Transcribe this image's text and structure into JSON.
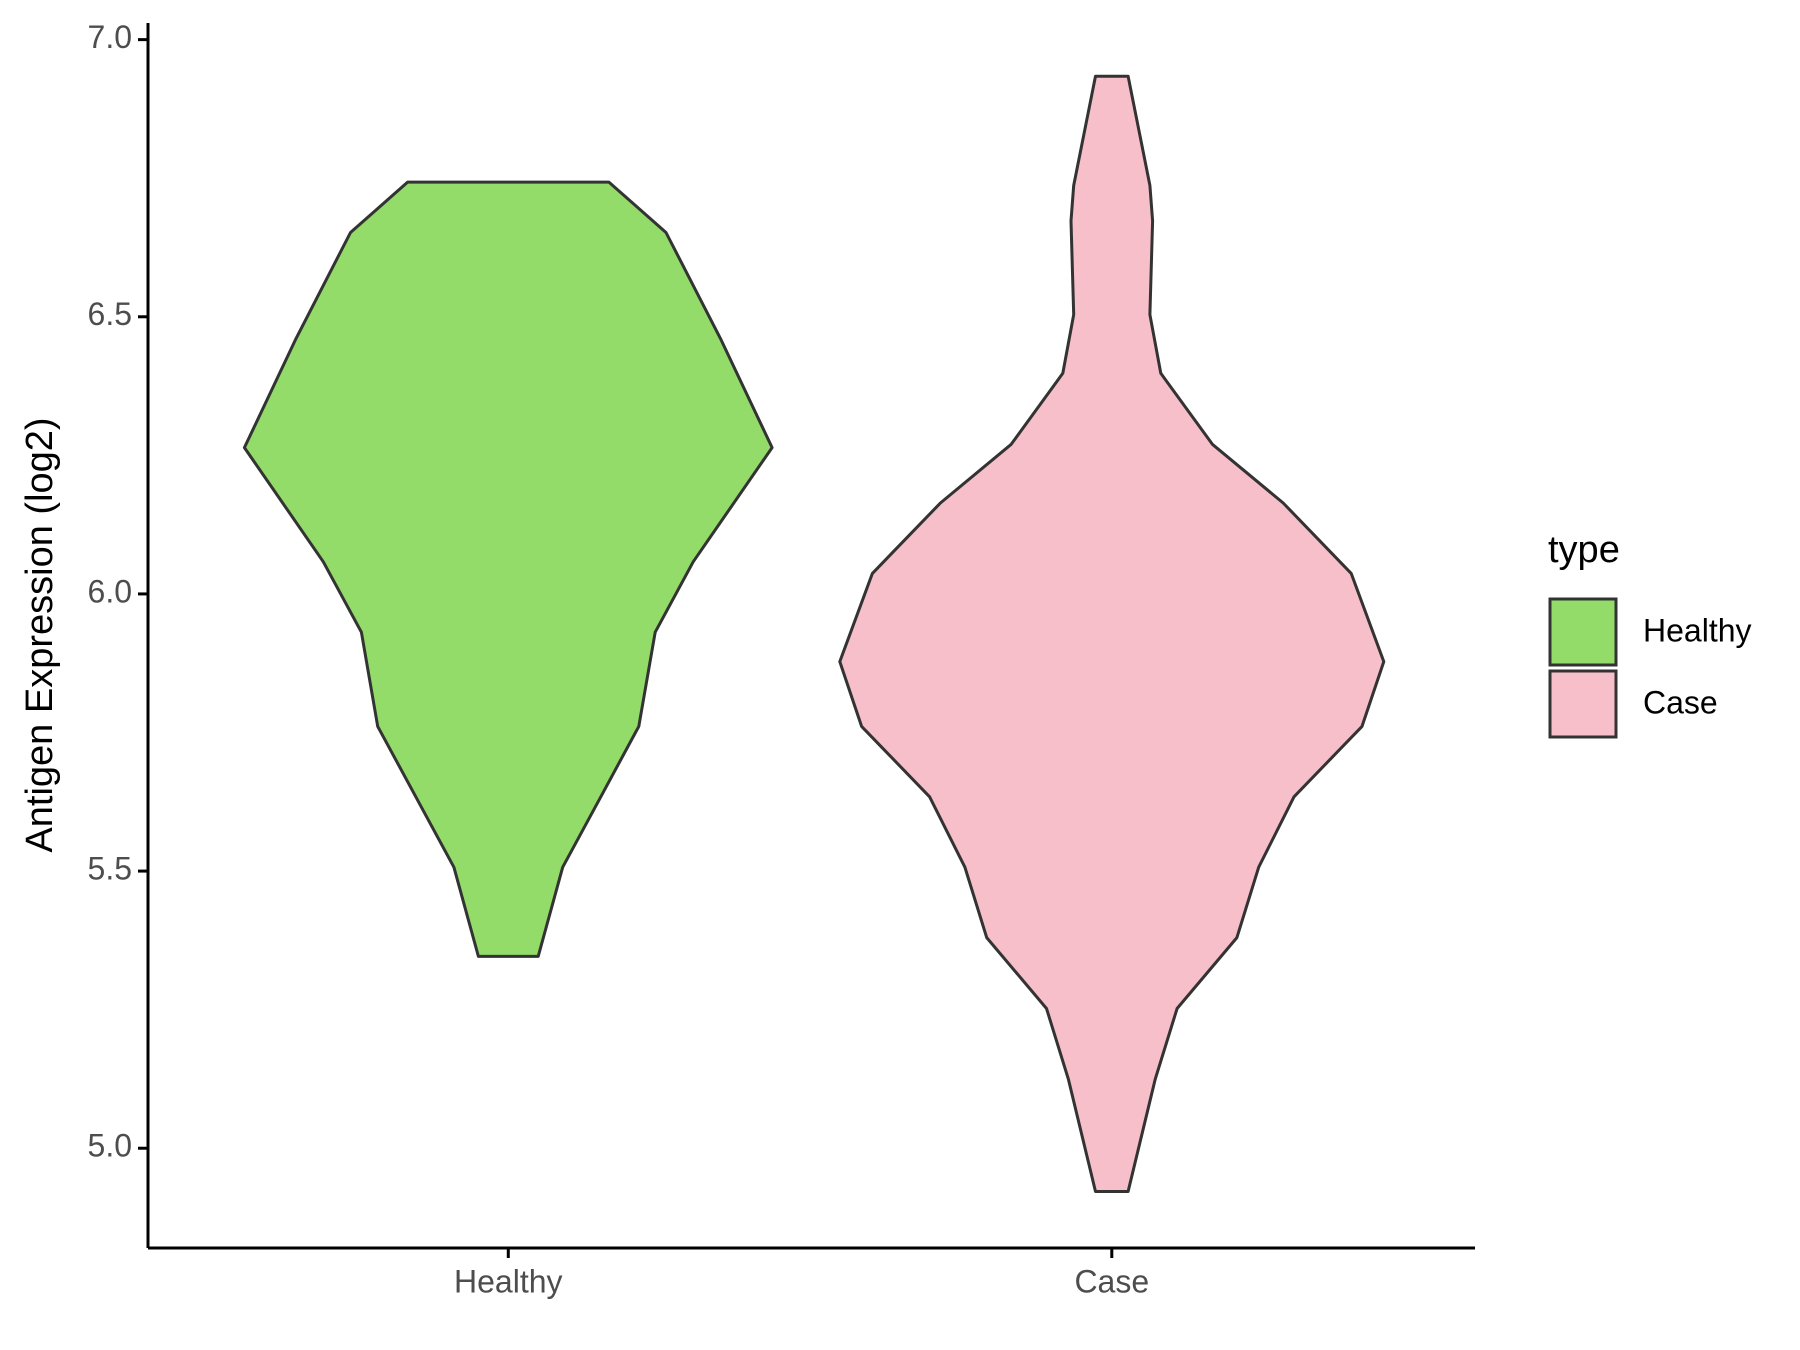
{
  "chart_data": {
    "type": "violin",
    "y_label": "Antigen Expression (log2)",
    "legend_title": "type",
    "legend_position": "right",
    "categories": [
      "Healthy",
      "Case"
    ],
    "ylim": [
      4.82,
      7.03
    ],
    "yticks": [
      {
        "value": 5,
        "label": "5.0"
      },
      5.5,
      {
        "value": 6,
        "label": "6.0"
      },
      6.5,
      {
        "value": 7,
        "label": "7.0"
      }
    ],
    "series": [
      {
        "name": "Healthy",
        "color": "#93dc6a",
        "y": [
          6.743,
          6.652,
          6.461,
          6.264,
          6.058,
          5.931,
          5.761,
          5.634,
          5.507,
          5.346
        ],
        "width": [
          0.37,
          0.58,
          0.78,
          0.97,
          0.68,
          0.54,
          0.48,
          0.34,
          0.2,
          0.11
        ]
      },
      {
        "name": "Case",
        "color": "#f7bfca",
        "y": [
          6.934,
          6.737,
          6.673,
          6.504,
          6.398,
          6.27,
          6.164,
          6.037,
          5.878,
          5.761,
          5.634,
          5.507,
          5.38,
          5.252,
          5.125,
          4.922
        ],
        "width": [
          0.06,
          0.14,
          0.15,
          0.14,
          0.18,
          0.37,
          0.63,
          0.88,
          1.0,
          0.92,
          0.67,
          0.54,
          0.46,
          0.24,
          0.16,
          0.06
        ]
      }
    ]
  }
}
